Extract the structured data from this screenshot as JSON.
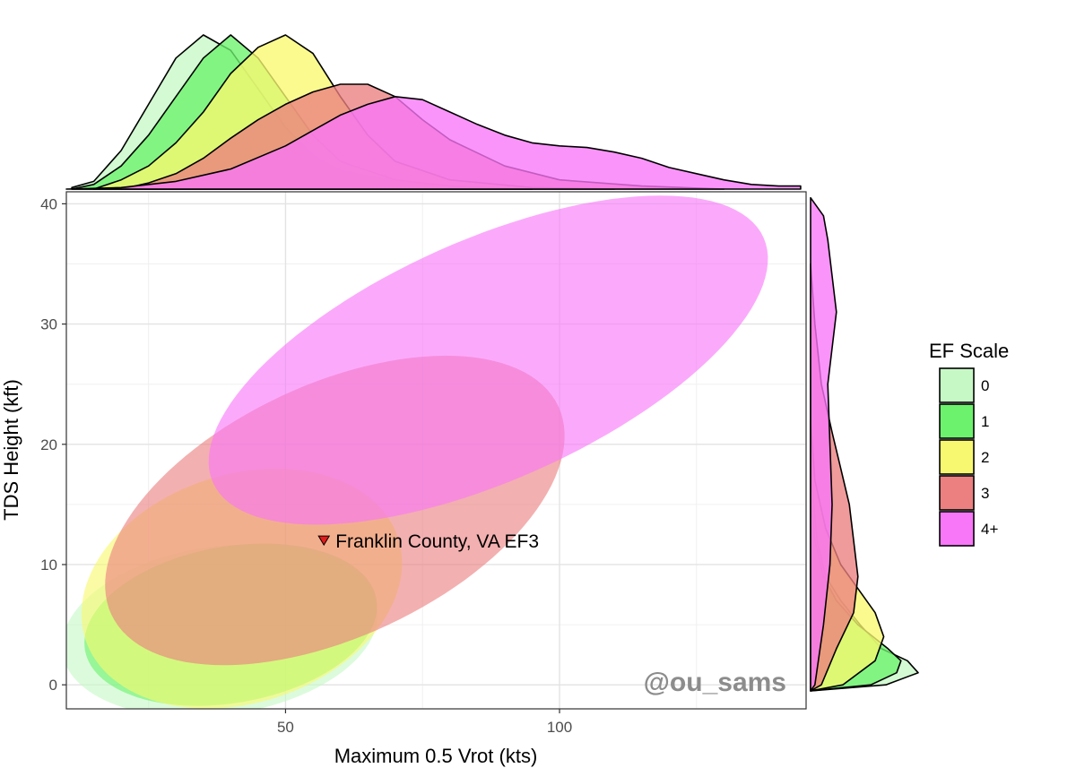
{
  "chart_data": {
    "type": "scatter",
    "subtype": "confidence-ellipses-with-marginal-densities",
    "xlabel": "Maximum 0.5 Vrot (kts)",
    "ylabel": "TDS Height (kft)",
    "xlim": [
      10,
      145
    ],
    "ylim": [
      -2,
      41
    ],
    "x_ticks": [
      50,
      100
    ],
    "y_ticks": [
      0,
      10,
      20,
      30,
      40
    ],
    "grid": true,
    "legend": {
      "title": "EF Scale",
      "placement": "right",
      "entries": [
        {
          "label": "0",
          "color": "#c6f8c6"
        },
        {
          "label": "1",
          "color": "#6cf26c"
        },
        {
          "label": "2",
          "color": "#f8f870"
        },
        {
          "label": "3",
          "color": "#ec7f7f"
        },
        {
          "label": "4+",
          "color": "#f876f8"
        }
      ]
    },
    "series": [
      {
        "name": "0",
        "color": "#c6f8c6",
        "ellipse": {
          "cx": 38,
          "cy": 4.5,
          "rx": 29,
          "ry": 7.0,
          "angle_deg": 8
        },
        "x_density": [
          [
            11,
            0.01
          ],
          [
            15,
            0.05
          ],
          [
            20,
            0.25
          ],
          [
            25,
            0.55
          ],
          [
            30,
            0.85
          ],
          [
            35,
            1.0
          ],
          [
            40,
            0.9
          ],
          [
            45,
            0.65
          ],
          [
            50,
            0.4
          ],
          [
            55,
            0.22
          ],
          [
            60,
            0.12
          ],
          [
            70,
            0.05
          ],
          [
            80,
            0.02
          ],
          [
            95,
            0.0
          ]
        ],
        "y_density": [
          [
            -0.5,
            0.0
          ],
          [
            0,
            0.35
          ],
          [
            1,
            0.5
          ],
          [
            2,
            0.45
          ],
          [
            3,
            0.33
          ],
          [
            5,
            0.23
          ],
          [
            7,
            0.14
          ],
          [
            9,
            0.07
          ],
          [
            12,
            0.03
          ],
          [
            16,
            0.01
          ],
          [
            22,
            0.0
          ]
        ]
      },
      {
        "name": "1",
        "color": "#6cf26c",
        "ellipse": {
          "cx": 40,
          "cy": 5.0,
          "rx": 27,
          "ry": 6.5,
          "angle_deg": 10
        },
        "x_density": [
          [
            11,
            0.0
          ],
          [
            15,
            0.03
          ],
          [
            20,
            0.15
          ],
          [
            25,
            0.35
          ],
          [
            30,
            0.6
          ],
          [
            35,
            0.85
          ],
          [
            40,
            1.0
          ],
          [
            45,
            0.85
          ],
          [
            50,
            0.6
          ],
          [
            55,
            0.35
          ],
          [
            60,
            0.18
          ],
          [
            70,
            0.06
          ],
          [
            80,
            0.02
          ],
          [
            95,
            0.0
          ]
        ],
        "y_density": [
          [
            -0.5,
            0.0
          ],
          [
            0,
            0.28
          ],
          [
            1,
            0.4
          ],
          [
            2,
            0.42
          ],
          [
            3,
            0.36
          ],
          [
            5,
            0.22
          ],
          [
            7,
            0.12
          ],
          [
            9,
            0.06
          ],
          [
            12,
            0.02
          ],
          [
            16,
            0.0
          ]
        ]
      },
      {
        "name": "2",
        "color": "#f8f870",
        "ellipse": {
          "cx": 42,
          "cy": 8.0,
          "rx": 30,
          "ry": 9.5,
          "angle_deg": 18
        },
        "x_density": [
          [
            15,
            0.0
          ],
          [
            20,
            0.06
          ],
          [
            25,
            0.15
          ],
          [
            30,
            0.3
          ],
          [
            35,
            0.5
          ],
          [
            40,
            0.75
          ],
          [
            45,
            0.92
          ],
          [
            50,
            1.0
          ],
          [
            55,
            0.88
          ],
          [
            60,
            0.6
          ],
          [
            65,
            0.35
          ],
          [
            70,
            0.18
          ],
          [
            80,
            0.06
          ],
          [
            95,
            0.01
          ],
          [
            110,
            0.0
          ]
        ],
        "y_density": [
          [
            -0.5,
            0.0
          ],
          [
            0,
            0.15
          ],
          [
            2,
            0.3
          ],
          [
            4,
            0.34
          ],
          [
            6,
            0.3
          ],
          [
            8,
            0.22
          ],
          [
            10,
            0.14
          ],
          [
            13,
            0.07
          ],
          [
            17,
            0.02
          ],
          [
            22,
            0.0
          ]
        ]
      },
      {
        "name": "3",
        "color": "#ec7f7f",
        "ellipse": {
          "cx": 59,
          "cy": 14.5,
          "rx": 45,
          "ry": 10.5,
          "angle_deg": 25
        },
        "x_density": [
          [
            20,
            0.0
          ],
          [
            25,
            0.04
          ],
          [
            30,
            0.1
          ],
          [
            35,
            0.2
          ],
          [
            40,
            0.33
          ],
          [
            45,
            0.45
          ],
          [
            50,
            0.55
          ],
          [
            55,
            0.63
          ],
          [
            60,
            0.68
          ],
          [
            65,
            0.68
          ],
          [
            70,
            0.6
          ],
          [
            75,
            0.45
          ],
          [
            80,
            0.32
          ],
          [
            90,
            0.15
          ],
          [
            100,
            0.06
          ],
          [
            115,
            0.02
          ],
          [
            130,
            0.0
          ]
        ],
        "y_density": [
          [
            -0.5,
            0.0
          ],
          [
            0,
            0.05
          ],
          [
            3,
            0.12
          ],
          [
            6,
            0.2
          ],
          [
            9,
            0.22
          ],
          [
            12,
            0.2
          ],
          [
            15,
            0.18
          ],
          [
            18,
            0.14
          ],
          [
            21,
            0.1
          ],
          [
            25,
            0.05
          ],
          [
            30,
            0.02
          ],
          [
            35,
            0.0
          ]
        ]
      },
      {
        "name": "4+",
        "color": "#f876f8",
        "ellipse": {
          "cx": 87,
          "cy": 27,
          "rx": 55,
          "ry": 10,
          "angle_deg": 24
        },
        "x_density": [
          [
            10,
            0.0
          ],
          [
            20,
            0.01
          ],
          [
            30,
            0.05
          ],
          [
            40,
            0.13
          ],
          [
            50,
            0.28
          ],
          [
            55,
            0.38
          ],
          [
            60,
            0.48
          ],
          [
            65,
            0.55
          ],
          [
            70,
            0.6
          ],
          [
            75,
            0.58
          ],
          [
            80,
            0.5
          ],
          [
            85,
            0.42
          ],
          [
            90,
            0.35
          ],
          [
            95,
            0.3
          ],
          [
            100,
            0.28
          ],
          [
            105,
            0.27
          ],
          [
            110,
            0.24
          ],
          [
            115,
            0.2
          ],
          [
            120,
            0.14
          ],
          [
            125,
            0.1
          ],
          [
            130,
            0.06
          ],
          [
            135,
            0.03
          ],
          [
            140,
            0.02
          ],
          [
            144,
            0.02
          ]
        ],
        "y_density": [
          [
            -0.5,
            0.0
          ],
          [
            0,
            0.02
          ],
          [
            5,
            0.06
          ],
          [
            10,
            0.09
          ],
          [
            15,
            0.1
          ],
          [
            20,
            0.09
          ],
          [
            25,
            0.08
          ],
          [
            28,
            0.1
          ],
          [
            31,
            0.12
          ],
          [
            34,
            0.1
          ],
          [
            37,
            0.08
          ],
          [
            39,
            0.06
          ],
          [
            40.5,
            0.0
          ]
        ]
      }
    ],
    "annotations": [
      {
        "text": "Franklin County, VA EF3",
        "x": 57,
        "y": 12,
        "marker": "down-triangle",
        "marker_color": "#e31a1c"
      },
      {
        "text": "@ou_sams"
      }
    ]
  }
}
